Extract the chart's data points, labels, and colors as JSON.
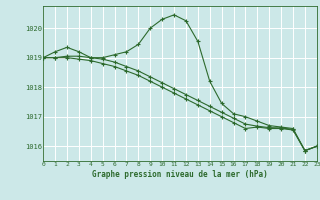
{
  "title": "Graphe pression niveau de la mer (hPa)",
  "background_color": "#cce8e8",
  "grid_color": "#ffffff",
  "line_color": "#2d6a2d",
  "xlim": [
    0,
    23
  ],
  "ylim": [
    1015.5,
    1020.75
  ],
  "yticks": [
    1016,
    1017,
    1018,
    1019,
    1020
  ],
  "xticks": [
    0,
    1,
    2,
    3,
    4,
    5,
    6,
    7,
    8,
    9,
    10,
    11,
    12,
    13,
    14,
    15,
    16,
    17,
    18,
    19,
    20,
    21,
    22,
    23
  ],
  "series1_x": [
    0,
    1,
    2,
    3,
    4,
    5,
    6,
    7,
    8,
    9,
    10,
    11,
    12,
    13,
    14,
    15,
    16,
    17,
    18,
    19,
    20,
    21,
    22,
    23
  ],
  "series1_y": [
    1019.0,
    1019.2,
    1019.35,
    1019.2,
    1019.0,
    1019.0,
    1019.1,
    1019.2,
    1019.45,
    1020.0,
    1020.3,
    1020.45,
    1020.25,
    1019.55,
    1018.2,
    1017.45,
    1017.1,
    1017.0,
    1016.85,
    1016.7,
    1016.65,
    1016.6,
    1015.85,
    1016.0
  ],
  "series2_x": [
    0,
    1,
    2,
    3,
    4,
    5,
    6,
    7,
    8,
    9,
    10,
    11,
    12,
    13,
    14,
    15,
    16,
    17,
    18,
    19,
    20,
    21,
    22,
    23
  ],
  "series2_y": [
    1019.0,
    1019.0,
    1019.0,
    1018.95,
    1018.9,
    1018.8,
    1018.7,
    1018.55,
    1018.4,
    1018.2,
    1018.0,
    1017.8,
    1017.6,
    1017.4,
    1017.2,
    1017.0,
    1016.8,
    1016.6,
    1016.65,
    1016.6,
    1016.6,
    1016.55,
    1015.85,
    1016.0
  ],
  "series3_x": [
    0,
    1,
    2,
    3,
    4,
    5,
    6,
    7,
    8,
    9,
    10,
    11,
    12,
    13,
    14,
    15,
    16,
    17,
    18,
    19,
    20,
    21,
    22,
    23
  ],
  "series3_y": [
    1019.0,
    1019.0,
    1019.05,
    1019.05,
    1019.0,
    1018.95,
    1018.85,
    1018.7,
    1018.55,
    1018.35,
    1018.15,
    1017.95,
    1017.75,
    1017.55,
    1017.35,
    1017.15,
    1016.95,
    1016.75,
    1016.68,
    1016.63,
    1016.62,
    1016.57,
    1015.85,
    1016.0
  ]
}
